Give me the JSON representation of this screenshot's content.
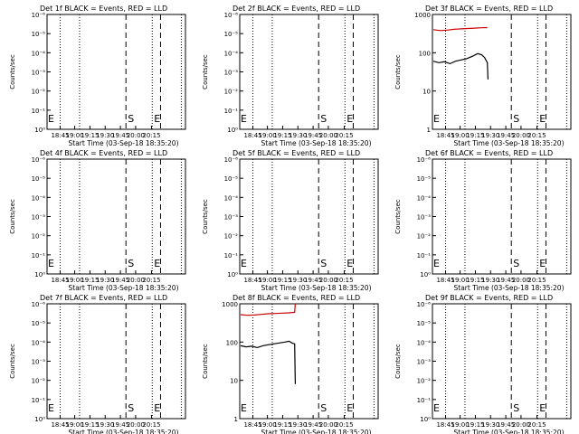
{
  "page": {
    "x_axis_label": "Start Time (03-Sep-18 18:35:20)",
    "y_axis_label": "Counts/sec",
    "x_tick_labels": [
      "18:45",
      "19:00",
      "19:15",
      "19:30",
      "19:45",
      "20:00",
      "20:15"
    ],
    "colors": {
      "events": "#000000",
      "lld": "#cc0000",
      "axes": "#000000"
    }
  },
  "chart_data": [
    {
      "type": "line",
      "title": "Det 1f BLACK = Events, RED = LLD",
      "xlabel": "Start Time (03-Sep-18 18:35:20)",
      "ylabel": "Counts/sec",
      "y_ticks": [
        "10⁰",
        "10⁻¹",
        "10⁻²",
        "10⁻³",
        "10⁻⁴",
        "10⁻⁵",
        "10⁻⁶"
      ],
      "x_tick_labels": [
        "18:45",
        "19:00",
        "19:15",
        "19:30",
        "19:45",
        "20:00",
        "20:15"
      ],
      "markers": {
        "E_left": "E",
        "S": "S",
        "E": "E"
      },
      "series": []
    },
    {
      "type": "line",
      "title": "Det 2f BLACK = Events, RED = LLD",
      "xlabel": "Start Time (03-Sep-18 18:35:20)",
      "ylabel": "Counts/sec",
      "y_ticks": [
        "10⁰",
        "10⁻¹",
        "10⁻²",
        "10⁻³",
        "10⁻⁴",
        "10⁻⁵",
        "10⁻⁶"
      ],
      "x_tick_labels": [
        "18:45",
        "19:00",
        "19:15",
        "19:30",
        "19:45",
        "20:00",
        "20:15"
      ],
      "markers": {
        "E_left": "E",
        "S": "S",
        "E": "E"
      },
      "series": []
    },
    {
      "type": "line",
      "title": "Det 3f BLACK = Events, RED = LLD",
      "xlabel": "Start Time (03-Sep-18 18:35:20)",
      "ylabel": "Counts/sec",
      "y_ticks": [
        "1",
        "10",
        "100",
        "1000"
      ],
      "log_y": true,
      "x_tick_labels": [
        "18:45",
        "19:00",
        "19:15",
        "19:30",
        "19:45",
        "20:00",
        "20:15"
      ],
      "markers": {
        "E_left": "E",
        "S": "S",
        "E": "E"
      },
      "series": [
        {
          "color": "#cc0000",
          "x": [
            0,
            5,
            10,
            15,
            20,
            25,
            30,
            35,
            39
          ],
          "y": [
            400,
            380,
            390,
            410,
            420,
            430,
            440,
            450,
            455
          ]
        },
        {
          "color": "#000000",
          "x": [
            0,
            4,
            8,
            12,
            16,
            20,
            24,
            28,
            32,
            35,
            37,
            39,
            39.5
          ],
          "y": [
            60,
            55,
            58,
            52,
            60,
            65,
            70,
            80,
            95,
            88,
            75,
            55,
            20
          ]
        }
      ]
    },
    {
      "type": "line",
      "title": "Det 4f BLACK = Events, RED = LLD",
      "xlabel": "Start Time (03-Sep-18 18:35:20)",
      "ylabel": "Counts/sec",
      "y_ticks": [
        "10⁰",
        "10⁻¹",
        "10⁻²",
        "10⁻³",
        "10⁻⁴",
        "10⁻⁵",
        "10⁻⁶"
      ],
      "x_tick_labels": [
        "18:45",
        "19:00",
        "19:15",
        "19:30",
        "19:45",
        "20:00",
        "20:15"
      ],
      "markers": {
        "E_left": "E",
        "S": "S",
        "E": "E"
      },
      "series": []
    },
    {
      "type": "line",
      "title": "Det 5f BLACK = Events, RED = LLD",
      "xlabel": "Start Time (03-Sep-18 18:35:20)",
      "ylabel": "Counts/sec",
      "y_ticks": [
        "10⁰",
        "10⁻¹",
        "10⁻²",
        "10⁻³",
        "10⁻⁴",
        "10⁻⁵",
        "10⁻⁶"
      ],
      "x_tick_labels": [
        "18:45",
        "19:00",
        "19:15",
        "19:30",
        "19:45",
        "20:00",
        "20:15"
      ],
      "markers": {
        "E_left": "E",
        "S": "S",
        "E": "E"
      },
      "series": []
    },
    {
      "type": "line",
      "title": "Det 6f BLACK = Events, RED = LLD",
      "xlabel": "Start Time (03-Sep-18 18:35:20)",
      "ylabel": "Counts/sec",
      "y_ticks": [
        "10⁰",
        "10⁻¹",
        "10⁻²",
        "10⁻³",
        "10⁻⁴",
        "10⁻⁵",
        "10⁻⁶"
      ],
      "x_tick_labels": [
        "18:45",
        "19:00",
        "19:15",
        "19:30",
        "19:45",
        "20:00",
        "20:15"
      ],
      "markers": {
        "E_left": "E",
        "S": "S",
        "E": "E"
      },
      "series": []
    },
    {
      "type": "line",
      "title": "Det 7f BLACK = Events, RED = LLD",
      "xlabel": "Start Time (03-Sep-18 18:35:20)",
      "ylabel": "Counts/sec",
      "y_ticks": [
        "10⁰",
        "10⁻¹",
        "10⁻²",
        "10⁻³",
        "10⁻⁴",
        "10⁻⁵",
        "10⁻⁶"
      ],
      "x_tick_labels": [
        "18:45",
        "19:00",
        "19:15",
        "19:30",
        "19:45",
        "20:00",
        "20:15"
      ],
      "markers": {
        "E_left": "E",
        "S": "S",
        "E": "E"
      },
      "series": []
    },
    {
      "type": "line",
      "title": "Det 8f BLACK = Events, RED = LLD",
      "xlabel": "Start Time (03-Sep-18 18:35:20)",
      "ylabel": "Counts/sec",
      "y_ticks": [
        "1",
        "10",
        "100",
        "1000"
      ],
      "log_y": true,
      "x_tick_labels": [
        "18:45",
        "19:00",
        "19:15",
        "19:30",
        "19:45",
        "20:00",
        "20:15"
      ],
      "markers": {
        "E_left": "E",
        "S": "S",
        "E": "E"
      },
      "series": [
        {
          "color": "#cc0000",
          "x": [
            0,
            5,
            10,
            15,
            20,
            25,
            30,
            35,
            39,
            39.5
          ],
          "y": [
            520,
            500,
            510,
            530,
            550,
            560,
            570,
            580,
            600,
            1100
          ]
        },
        {
          "color": "#000000",
          "x": [
            0,
            4,
            8,
            12,
            16,
            20,
            24,
            28,
            32,
            35,
            37,
            39,
            39.5
          ],
          "y": [
            80,
            75,
            78,
            72,
            80,
            85,
            90,
            95,
            100,
            105,
            95,
            90,
            8
          ]
        }
      ]
    },
    {
      "type": "line",
      "title": "Det 9f BLACK = Events, RED = LLD",
      "xlabel": "Start Time (03-Sep-18 18:35:20)",
      "ylabel": "Counts/sec",
      "y_ticks": [
        "10⁰",
        "10⁻¹",
        "10⁻²",
        "10⁻³",
        "10⁻⁴",
        "10⁻⁵",
        "10⁻⁶"
      ],
      "x_tick_labels": [
        "18:45",
        "19:00",
        "19:15",
        "19:30",
        "19:45",
        "20:00",
        "20:15"
      ],
      "markers": {
        "E_left": "E",
        "S": "S",
        "E": "E"
      },
      "series": []
    }
  ]
}
